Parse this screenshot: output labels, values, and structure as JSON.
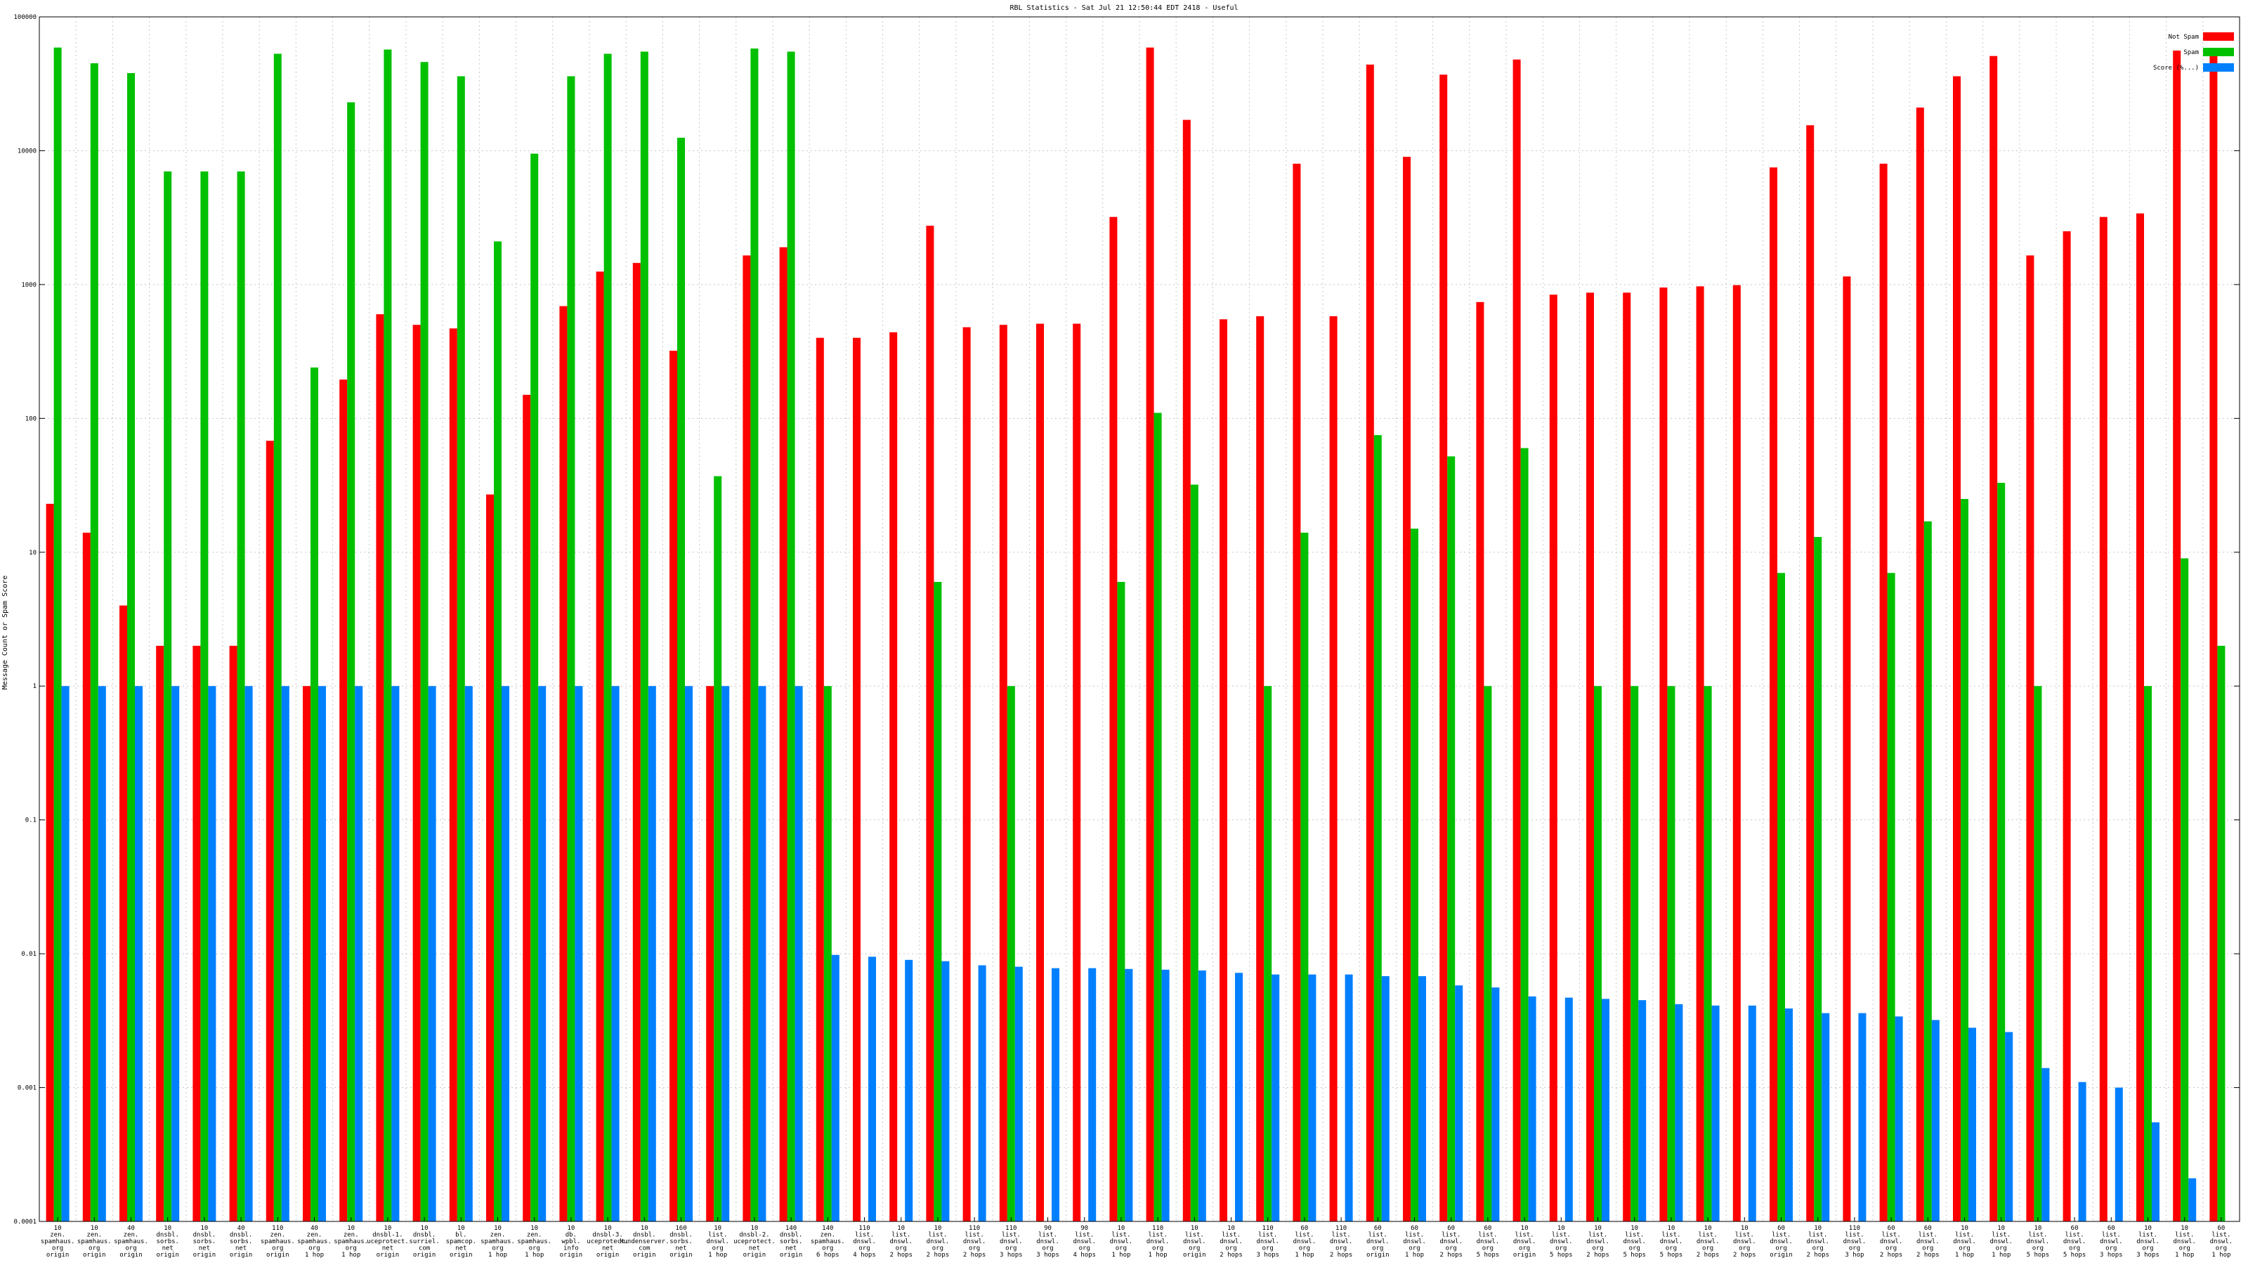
{
  "chart_data": {
    "type": "bar",
    "title": "RBL Statistics - Sat Jul 21 12:50:44 EDT 2418 - Useful",
    "ylabel": "Message Count or Spam Score",
    "xlabel": "",
    "yscale": "log",
    "ylim": [
      0.0001,
      100000
    ],
    "yticks": [
      0.0001,
      0.001,
      0.01,
      0.1,
      1,
      10,
      100,
      1000,
      10000,
      100000
    ],
    "ytick_labels": [
      "0.0001",
      "0.001",
      "0.01",
      "0.1",
      "1",
      "10",
      "100",
      "1000",
      "10000",
      "100000"
    ],
    "grid": true,
    "legend": "top-right",
    "categories": [
      [
        "10",
        "zen.",
        "spamhaus.",
        "org",
        "origin"
      ],
      [
        "10",
        "zen.",
        "spamhaus.",
        "org",
        "origin"
      ],
      [
        "40",
        "zen.",
        "spamhaus.",
        "org",
        "origin"
      ],
      [
        "10",
        "dnsbl.",
        "sorbs.",
        "net",
        "origin"
      ],
      [
        "10",
        "dnsbl.",
        "sorbs.",
        "net",
        "origin"
      ],
      [
        "40",
        "dnsbl.",
        "sorbs.",
        "net",
        "origin"
      ],
      [
        "110",
        "zen.",
        "spamhaus.",
        "org",
        "origin"
      ],
      [
        "40",
        "zen.",
        "spamhaus.",
        "org",
        "1 hop"
      ],
      [
        "10",
        "zen.",
        "spamhaus.",
        "org",
        "1 hop"
      ],
      [
        "10",
        "dnsbl-1.",
        "uceprotect.",
        "net",
        "origin"
      ],
      [
        "10",
        "dnsbl.",
        "surriel.",
        "com",
        "origin"
      ],
      [
        "10",
        "bl.",
        "spamcop.",
        "net",
        "origin"
      ],
      [
        "10",
        "zen.",
        "spamhaus.",
        "org",
        "1 hop"
      ],
      [
        "10",
        "zen.",
        "spamhaus.",
        "org",
        "1 hop"
      ],
      [
        "10",
        "db.",
        "wpbl.",
        "info",
        "origin"
      ],
      [
        "10",
        "dnsbl-3.",
        "uceprotect.",
        "net",
        "origin"
      ],
      [
        "10",
        "dnsbl.",
        "kundenserver.",
        "com",
        "origin"
      ],
      [
        "160",
        "dnsbl.",
        "sorbs.",
        "net",
        "origin"
      ],
      [
        "10",
        "list.",
        "dnswl.",
        "org",
        "1 hop"
      ],
      [
        "10",
        "dnsbl-2.",
        "uceprotect.",
        "net",
        "origin"
      ],
      [
        "140",
        "dnsbl.",
        "sorbs.",
        "net",
        "origin"
      ],
      [
        "140",
        "zen.",
        "spamhaus.",
        "org",
        "6 hops"
      ],
      [
        "110",
        "list.",
        "dnswl.",
        "org",
        "4 hops"
      ],
      [
        "10",
        "list.",
        "dnswl.",
        "org",
        "2 hops"
      ],
      [
        "10",
        "list.",
        "dnswl.",
        "org",
        "2 hops"
      ],
      [
        "110",
        "list.",
        "dnswl.",
        "org",
        "2 hops"
      ],
      [
        "110",
        "list.",
        "dnswl.",
        "org",
        "3 hops"
      ],
      [
        "90",
        "list.",
        "dnswl.",
        "org",
        "3 hops"
      ],
      [
        "90",
        "list.",
        "dnswl.",
        "org",
        "4 hops"
      ],
      [
        "10",
        "list.",
        "dnswl.",
        "org",
        "1 hop"
      ],
      [
        "110",
        "list.",
        "dnswl.",
        "org",
        "1 hop"
      ],
      [
        "10",
        "list.",
        "dnswl.",
        "org",
        "origin"
      ],
      [
        "10",
        "list.",
        "dnswl.",
        "org",
        "2 hops"
      ],
      [
        "110",
        "list.",
        "dnswl.",
        "org",
        "3 hops"
      ],
      [
        "60",
        "list.",
        "dnswl.",
        "org",
        "1 hop"
      ],
      [
        "110",
        "list.",
        "dnswl.",
        "org",
        "2 hops"
      ],
      [
        "60",
        "list.",
        "dnswl.",
        "org",
        "origin"
      ],
      [
        "60",
        "list.",
        "dnswl.",
        "org",
        "1 hop"
      ],
      [
        "60",
        "list.",
        "dnswl.",
        "org",
        "2 hops"
      ],
      [
        "60",
        "list.",
        "dnswl.",
        "org",
        "5 hops"
      ],
      [
        "10",
        "list.",
        "dnswl.",
        "org",
        "origin"
      ],
      [
        "10",
        "list.",
        "dnswl.",
        "org",
        "5 hops"
      ],
      [
        "10",
        "list.",
        "dnswl.",
        "org",
        "2 hops"
      ],
      [
        "10",
        "list.",
        "dnswl.",
        "org",
        "5 hops"
      ],
      [
        "10",
        "list.",
        "dnswl.",
        "org",
        "5 hops"
      ],
      [
        "10",
        "list.",
        "dnswl.",
        "org",
        "2 hops"
      ],
      [
        "10",
        "list.",
        "dnswl.",
        "org",
        "2 hops"
      ],
      [
        "60",
        "list.",
        "dnswl.",
        "org",
        "origin"
      ],
      [
        "10",
        "list.",
        "dnswl.",
        "org",
        "2 hops"
      ],
      [
        "110",
        "list.",
        "dnswl.",
        "org",
        "3 hop"
      ],
      [
        "60",
        "list.",
        "dnswl.",
        "org",
        "2 hops"
      ],
      [
        "60",
        "list.",
        "dnswl.",
        "org",
        "2 hops"
      ],
      [
        "10",
        "list.",
        "dnswl.",
        "org",
        "1 hop"
      ],
      [
        "10",
        "list.",
        "dnswl.",
        "org",
        "1 hop"
      ],
      [
        "10",
        "list.",
        "dnswl.",
        "org",
        "5 hops"
      ],
      [
        "60",
        "list.",
        "dnswl.",
        "org",
        "5 hops"
      ],
      [
        "60",
        "list.",
        "dnswl.",
        "org",
        "3 hops"
      ],
      [
        "10",
        "list.",
        "dnswl.",
        "org",
        "3 hops"
      ],
      [
        "10",
        "list.",
        "dnswl.",
        "org",
        "1 hop"
      ],
      [
        "60",
        "list.",
        "dnswl.",
        "org",
        "1 hop"
      ]
    ],
    "series": [
      {
        "name": "Not Spam",
        "color": "#ff0000",
        "values": [
          23,
          14,
          4,
          2,
          2,
          2,
          68,
          1,
          195,
          600,
          500,
          470,
          27,
          150,
          690,
          1250,
          1450,
          320,
          1,
          1650,
          1900,
          400,
          400,
          440,
          2750,
          480,
          500,
          510,
          510,
          3200,
          59000,
          17000,
          550,
          580,
          8000,
          580,
          44000,
          9000,
          37000,
          740,
          48000,
          840,
          870,
          870,
          950,
          970,
          990,
          7500,
          15500,
          1150,
          8000,
          21000,
          36000,
          51000,
          1650,
          2500,
          3200,
          3400,
          56000,
          51000
        ]
      },
      {
        "name": "Spam",
        "color": "#00c000",
        "values": [
          59000,
          45000,
          38000,
          7000,
          7000,
          7000,
          53000,
          240,
          23000,
          57000,
          46000,
          36000,
          2100,
          9500,
          36000,
          53000,
          55000,
          12500,
          37,
          58000,
          55000,
          1,
          null,
          null,
          6,
          null,
          1,
          null,
          null,
          6,
          110,
          32,
          null,
          1,
          14,
          null,
          75,
          15,
          52,
          1,
          60,
          null,
          1,
          1,
          1,
          1,
          null,
          7,
          13,
          null,
          7,
          17,
          25,
          33,
          1,
          null,
          null,
          1,
          9,
          2
        ]
      },
      {
        "name": "Score (%...)",
        "color": "#0080ff",
        "values": [
          1,
          1,
          1,
          1,
          1,
          1,
          1,
          1,
          1,
          1,
          1,
          1,
          1,
          1,
          1,
          1,
          1,
          1,
          1,
          1,
          1,
          0.0098,
          0.0095,
          0.009,
          0.0088,
          0.0082,
          0.008,
          0.0078,
          0.0078,
          0.0077,
          0.0076,
          0.0075,
          0.0072,
          0.007,
          0.007,
          0.007,
          0.0068,
          0.0068,
          0.0058,
          0.0056,
          0.0048,
          0.0047,
          0.0046,
          0.0045,
          0.0042,
          0.0041,
          0.0041,
          0.0039,
          0.0036,
          0.0036,
          0.0034,
          0.0032,
          0.0028,
          0.0026,
          0.0014,
          0.0011,
          0.001,
          0.00055,
          0.00021,
          0.0001
        ]
      }
    ]
  }
}
